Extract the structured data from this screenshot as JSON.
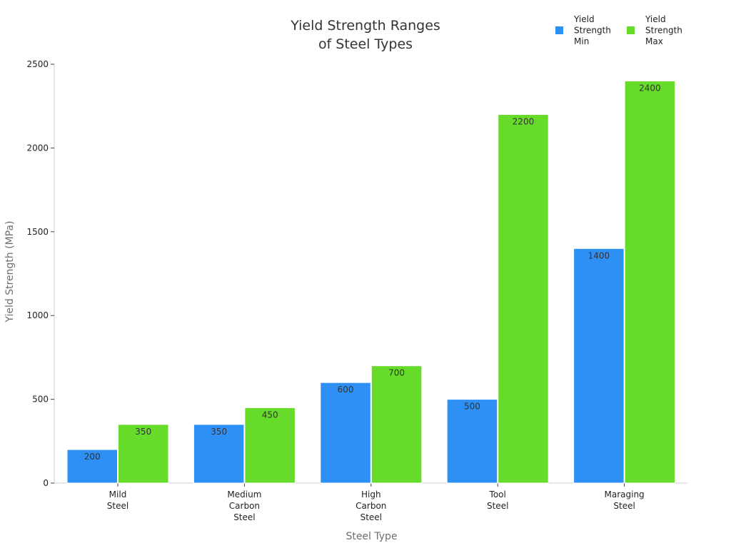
{
  "chart_data": {
    "type": "bar",
    "title": "Yield Strength Ranges of Steel Types",
    "title_lines": [
      "Yield Strength Ranges",
      "of Steel Types"
    ],
    "xlabel": "Steel Type",
    "ylabel": "Yield Strength (MPa)",
    "categories": [
      [
        "Mild",
        "Steel"
      ],
      [
        "Medium",
        "Carbon",
        "Steel"
      ],
      [
        "High",
        "Carbon",
        "Steel"
      ],
      [
        "Tool",
        "Steel"
      ],
      [
        "Maraging",
        "Steel"
      ]
    ],
    "series": [
      {
        "name": [
          "Yield",
          "Strength",
          "Min"
        ],
        "color": "#2e90f5",
        "values": [
          200,
          350,
          600,
          500,
          1400
        ]
      },
      {
        "name": [
          "Yield",
          "Strength",
          "Max"
        ],
        "color": "#66db29",
        "values": [
          350,
          450,
          700,
          2200,
          2400
        ]
      }
    ],
    "ylim": [
      0,
      2500
    ],
    "yticks": [
      0,
      500,
      1000,
      1500,
      2000,
      2500
    ],
    "grid": false,
    "legend_position": "top-right",
    "data_labels": true
  }
}
